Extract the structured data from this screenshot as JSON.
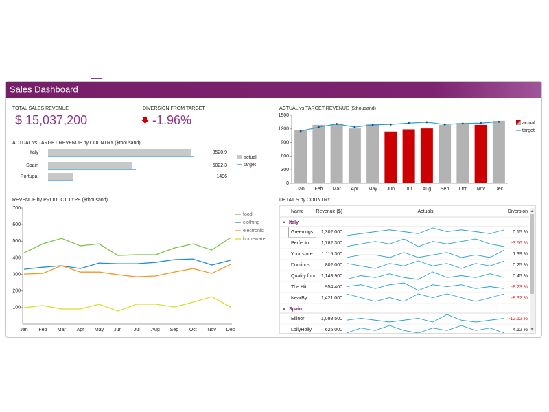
{
  "header": {
    "title": "Sales Dashboard"
  },
  "kpis": [
    {
      "label": "TOTAL SALES REVENUE",
      "value": "$ 15,037,200"
    },
    {
      "label": "DIVERSION FROM TARGET",
      "value": "-1.96%"
    }
  ],
  "chart_data": [
    {
      "type": "hbar",
      "title": "ACTUAL vs TARGET REVENUE by COUNTRY ($thousand)",
      "categories": [
        "Italy",
        "Spain",
        "Portugal"
      ],
      "series": [
        {
          "name": "actual",
          "color": "#c8c8c8",
          "values": [
            8520.9,
            5022.3,
            1496
          ]
        },
        {
          "name": "target",
          "color": "#1e90d6",
          "values": [
            8700,
            5230,
            1500
          ]
        }
      ]
    },
    {
      "type": "bar-line",
      "title": "ACTUAL vs TARGET REVENUE ($thousand)",
      "categories": [
        "Jan",
        "Feb",
        "Mar",
        "Apr",
        "May",
        "Jun",
        "Jul",
        "Aug",
        "Sep",
        "Oct",
        "Nov",
        "Dec"
      ],
      "ylim": [
        0,
        1500
      ],
      "yticks": [
        0,
        300,
        600,
        900,
        1200,
        1500
      ],
      "series": [
        {
          "name": "actual",
          "color": "#b3b3b3",
          "colors": [
            "#b3b3b3",
            "#b3b3b3",
            "#b3b3b3",
            "#b3b3b3",
            "#b3b3b3",
            "#cc0000",
            "#cc0000",
            "#cc0000",
            "#b3b3b3",
            "#b3b3b3",
            "#cc0000",
            "#b3b3b3"
          ],
          "values": [
            1170,
            1290,
            1320,
            1210,
            1310,
            1140,
            1190,
            1210,
            1290,
            1330,
            1290,
            1380
          ]
        },
        {
          "name": "target",
          "color": "#2a9fd6",
          "values": [
            1150,
            1240,
            1310,
            1240,
            1290,
            1300,
            1330,
            1350,
            1300,
            1320,
            1330,
            1360
          ]
        }
      ]
    },
    {
      "type": "line",
      "title": "REVENUE by PRODUCT TYPE ($thousand)",
      "categories": [
        "Jan",
        "Feb",
        "Mar",
        "Apr",
        "May",
        "Jun",
        "Jul",
        "Aug",
        "Sep",
        "Oct",
        "Nov",
        "Dec"
      ],
      "ylim": [
        0,
        700
      ],
      "yticks": [
        100,
        200,
        300,
        400,
        500,
        600,
        700
      ],
      "series": [
        {
          "name": "food",
          "color": "#7dc242",
          "values": [
            430,
            484,
            517,
            472,
            484,
            414,
            418,
            418,
            459,
            484,
            447,
            521
          ]
        },
        {
          "name": "clothing",
          "color": "#1e8fd6",
          "values": [
            331,
            343,
            352,
            335,
            368,
            364,
            364,
            372,
            389,
            393,
            356,
            385
          ]
        },
        {
          "name": "electronic",
          "color": "#f7941d",
          "values": [
            302,
            306,
            352,
            314,
            314,
            298,
            285,
            290,
            314,
            335,
            306,
            360
          ]
        },
        {
          "name": "homeware",
          "color": "#d7df23",
          "values": [
            99,
            112,
            91,
            91,
            120,
            79,
            120,
            120,
            103,
            132,
            165,
            103
          ]
        }
      ]
    }
  ],
  "details": {
    "title": "DETAILS by COUNTRY",
    "columns": [
      "Name",
      "Revenue ($)",
      "Actuals",
      "Diversion"
    ],
    "groups": [
      {
        "name": "Italy",
        "rows": [
          {
            "name": "Greenings",
            "revenue": "1,302,000",
            "actuals": [
              5,
              6,
              7,
              8,
              7,
              6,
              9,
              7,
              8,
              7,
              6,
              8
            ],
            "diversion": "0.15 %"
          },
          {
            "name": "Perfecto",
            "revenue": "1,782,300",
            "actuals": [
              5,
              6,
              7,
              6,
              8,
              5,
              7,
              6,
              7,
              8,
              6,
              5
            ],
            "diversion": "-3.66 %"
          },
          {
            "name": "Your store",
            "revenue": "1,115,300",
            "actuals": [
              6,
              7,
              7,
              6,
              8,
              6,
              7,
              8,
              6,
              7,
              6,
              9
            ],
            "diversion": "1.39 %"
          },
          {
            "name": "Dominos",
            "revenue": "802,000",
            "actuals": [
              6,
              5,
              4,
              6,
              5,
              7,
              5,
              6,
              4,
              6,
              5,
              7
            ],
            "diversion": "0.25 %"
          },
          {
            "name": "Quality food",
            "revenue": "1,143,900",
            "actuals": [
              5,
              7,
              6,
              8,
              6,
              5,
              9,
              6,
              7,
              6,
              8,
              6
            ],
            "diversion": "0.45 %"
          },
          {
            "name": "The Hit",
            "revenue": "954,400",
            "actuals": [
              6,
              7,
              5,
              7,
              8,
              4,
              7,
              6,
              7,
              5,
              6,
              5
            ],
            "diversion": "-8.23 %"
          },
          {
            "name": "NearBy",
            "revenue": "1,421,000",
            "actuals": [
              7,
              6,
              5,
              6,
              5,
              7,
              6,
              7,
              6,
              5,
              6,
              7
            ],
            "diversion": "-8.32 %"
          }
        ]
      },
      {
        "name": "Spain",
        "rows": [
          {
            "name": "Ellinor",
            "revenue": "1,098,500",
            "actuals": [
              6,
              7,
              6,
              5,
              6,
              7,
              5,
              9,
              6,
              5,
              6,
              7
            ],
            "diversion": "-12.12 %"
          },
          {
            "name": "LollyHolly",
            "revenue": "625,000",
            "actuals": [
              5,
              7,
              6,
              8,
              6,
              5,
              7,
              6,
              8,
              6,
              7,
              5
            ],
            "diversion": "4.12 %"
          }
        ]
      }
    ]
  }
}
